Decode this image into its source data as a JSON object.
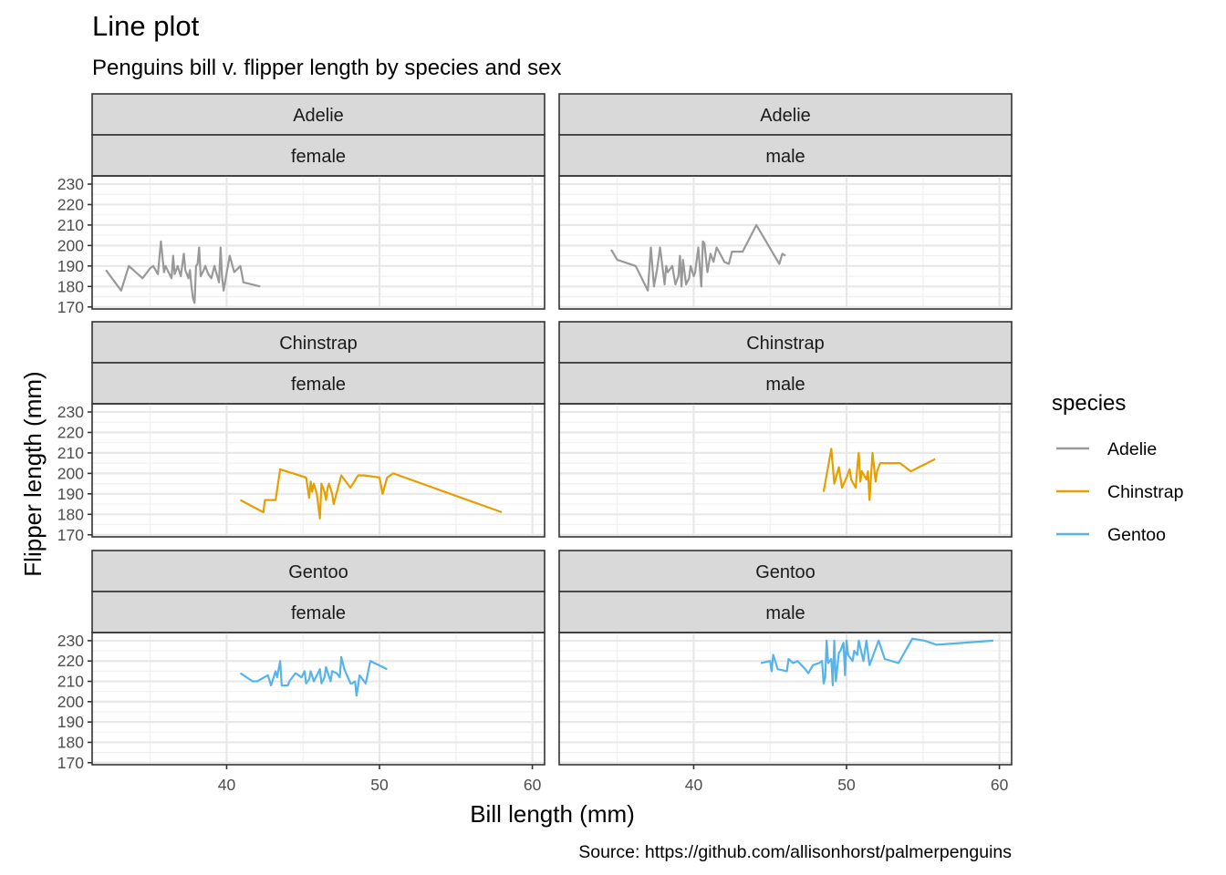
{
  "chart_data": {
    "type": "line",
    "title": "Line plot",
    "subtitle": "Penguins bill v. flipper length by species and sex",
    "xlabel": "Bill length (mm)",
    "ylabel": "Flipper length (mm)",
    "caption": "Source: https://github.com/allisonhorst/palmerpenguins",
    "xlim": [
      31.2,
      60.8
    ],
    "ylim": [
      169,
      234
    ],
    "x_ticks": [
      40,
      50,
      60
    ],
    "y_ticks": [
      170,
      180,
      190,
      200,
      210,
      220,
      230
    ],
    "grid": true,
    "facet_rows": [
      "Adelie",
      "Chinstrap",
      "Gentoo"
    ],
    "facet_cols": [
      "female",
      "male"
    ],
    "legend": {
      "title": "species",
      "position": "right",
      "entries": [
        "Adelie",
        "Chinstrap",
        "Gentoo"
      ]
    },
    "colors": {
      "Adelie": "#999999",
      "Chinstrap": "#E69F00",
      "Gentoo": "#56B4E9"
    },
    "panels": [
      {
        "species": "Adelie",
        "sex": "female",
        "x": [
          32.1,
          33.1,
          33.6,
          34.5,
          35.0,
          35.2,
          35.5,
          35.7,
          35.9,
          36.0,
          36.2,
          36.4,
          36.5,
          36.6,
          36.8,
          37.0,
          37.2,
          37.3,
          37.5,
          37.6,
          37.7,
          37.8,
          37.9,
          38.0,
          38.1,
          38.2,
          38.3,
          38.5,
          38.6,
          38.8,
          39.0,
          39.2,
          39.5,
          39.6,
          39.7,
          39.8,
          40.2,
          40.5,
          40.9,
          41.1,
          42.2
        ],
        "y": [
          188,
          178,
          190,
          184,
          189,
          190,
          186,
          202,
          187,
          190,
          187,
          184,
          195,
          186,
          190,
          185,
          196,
          188,
          184,
          188,
          180,
          174,
          172,
          190,
          191,
          199,
          185,
          188,
          190,
          186,
          184,
          190,
          182,
          199,
          185,
          178,
          195,
          187,
          190,
          182,
          180
        ]
      },
      {
        "species": "Adelie",
        "sex": "male",
        "x": [
          34.6,
          35.0,
          36.2,
          37.0,
          37.2,
          37.4,
          37.6,
          37.8,
          38.1,
          38.2,
          38.3,
          38.6,
          38.8,
          39.0,
          39.1,
          39.2,
          39.3,
          39.5,
          39.7,
          39.8,
          40.0,
          40.1,
          40.2,
          40.3,
          40.5,
          40.6,
          40.7,
          40.9,
          41.1,
          41.3,
          41.5,
          41.8,
          42.0,
          42.3,
          42.5,
          43.1,
          43.2,
          44.1,
          45.6,
          45.8,
          46.0
        ],
        "y": [
          198,
          193,
          190,
          178,
          199,
          180,
          188,
          199,
          181,
          190,
          187,
          190,
          181,
          185,
          195,
          180,
          193,
          181,
          184,
          190,
          185,
          187,
          193,
          199,
          180,
          202,
          201,
          187,
          196,
          192,
          199,
          195,
          192,
          191,
          197,
          197,
          197,
          210,
          191,
          196,
          195
        ]
      },
      {
        "species": "Chinstrap",
        "sex": "female",
        "x": [
          40.9,
          42.4,
          42.5,
          43.2,
          43.5,
          45.2,
          45.4,
          45.5,
          45.6,
          45.7,
          45.9,
          46.1,
          46.2,
          46.4,
          46.5,
          46.6,
          46.7,
          46.9,
          47.0,
          47.5,
          48.1,
          48.6,
          49.0,
          50.0,
          50.2,
          50.5,
          50.9,
          58.0
        ],
        "y": [
          187,
          181,
          187,
          187,
          202,
          198,
          188,
          196,
          191,
          195,
          190,
          178,
          195,
          191,
          187,
          193,
          195,
          190,
          185,
          199,
          193,
          199,
          199,
          198,
          190,
          198,
          200,
          181
        ]
      },
      {
        "species": "Chinstrap",
        "sex": "male",
        "x": [
          48.5,
          49.0,
          49.2,
          49.5,
          49.7,
          50.0,
          50.2,
          50.3,
          50.6,
          50.7,
          50.8,
          50.9,
          51.0,
          51.3,
          51.4,
          51.5,
          51.7,
          51.9,
          52.0,
          52.2,
          52.7,
          53.5,
          54.2,
          55.8
        ],
        "y": [
          191,
          212,
          195,
          203,
          193,
          198,
          202,
          197,
          193,
          203,
          210,
          196,
          201,
          197,
          201,
          187,
          210,
          196,
          201,
          205,
          205,
          205,
          201,
          207
        ]
      },
      {
        "species": "Gentoo",
        "sex": "female",
        "x": [
          40.9,
          41.7,
          42.0,
          42.7,
          42.9,
          43.2,
          43.3,
          43.5,
          43.6,
          44.0,
          44.1,
          44.5,
          44.9,
          45.1,
          45.2,
          45.3,
          45.4,
          45.5,
          45.7,
          46.1,
          46.2,
          46.4,
          46.5,
          46.8,
          46.9,
          47.2,
          47.4,
          47.5,
          47.7,
          48.1,
          48.2,
          48.4,
          48.5,
          48.7,
          49.1,
          49.4,
          50.5
        ],
        "y": [
          214,
          210,
          210,
          213,
          208,
          215,
          212,
          220,
          208,
          208,
          210,
          214,
          212,
          215,
          209,
          210,
          211,
          215,
          210,
          216,
          209,
          212,
          217,
          210,
          215,
          214,
          212,
          222,
          216,
          209,
          209,
          210,
          203,
          213,
          209,
          220,
          216
        ]
      },
      {
        "species": "Gentoo",
        "sex": "male",
        "x": [
          44.4,
          45.0,
          45.1,
          45.2,
          45.5,
          46.1,
          46.2,
          46.5,
          46.8,
          47.3,
          47.5,
          47.8,
          48.2,
          48.4,
          48.5,
          48.6,
          48.7,
          48.8,
          49.0,
          49.1,
          49.2,
          49.3,
          49.5,
          49.6,
          49.8,
          49.9,
          50.0,
          50.1,
          50.2,
          50.4,
          50.5,
          50.7,
          50.8,
          51.1,
          51.3,
          51.5,
          52.1,
          52.5,
          53.4,
          54.3,
          55.1,
          55.9,
          59.6
        ],
        "y": [
          219,
          220,
          215,
          223,
          216,
          215,
          221,
          219,
          220,
          216,
          214,
          218,
          219,
          220,
          209,
          212,
          230,
          219,
          221,
          208,
          230,
          210,
          224,
          225,
          229,
          213,
          230,
          223,
          222,
          220,
          225,
          223,
          230,
          220,
          230,
          218,
          230,
          221,
          219,
          231,
          230,
          228,
          230
        ]
      }
    ]
  }
}
